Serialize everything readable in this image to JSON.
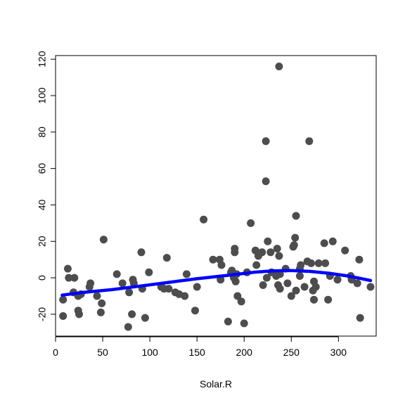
{
  "chart_data": {
    "type": "scatter",
    "title": "",
    "xlabel": "Solar.R",
    "ylabel": "",
    "xlim": [
      0,
      340
    ],
    "ylim": [
      -32,
      122
    ],
    "xticks": [
      0,
      50,
      100,
      150,
      200,
      250,
      300
    ],
    "yticks": [
      -20,
      0,
      20,
      40,
      60,
      80,
      100,
      120
    ],
    "grid": false,
    "point_color": "#4d4d4d",
    "smooth_color": "#0000ff",
    "points": [
      {
        "x": 8,
        "y": -12
      },
      {
        "x": 8,
        "y": -21
      },
      {
        "x": 13,
        "y": 5
      },
      {
        "x": 14,
        "y": 0
      },
      {
        "x": 19,
        "y": -8
      },
      {
        "x": 20,
        "y": 0
      },
      {
        "x": 24,
        "y": -10
      },
      {
        "x": 24,
        "y": -18
      },
      {
        "x": 25,
        "y": -20
      },
      {
        "x": 27,
        "y": -9
      },
      {
        "x": 36,
        "y": -5
      },
      {
        "x": 37,
        "y": -3
      },
      {
        "x": 44,
        "y": -10
      },
      {
        "x": 48,
        "y": -19
      },
      {
        "x": 49,
        "y": -14
      },
      {
        "x": 51,
        "y": 21
      },
      {
        "x": 65,
        "y": 2
      },
      {
        "x": 71,
        "y": -3
      },
      {
        "x": 77,
        "y": -27
      },
      {
        "x": 78,
        "y": -8
      },
      {
        "x": 81,
        "y": -20
      },
      {
        "x": 82,
        "y": -1
      },
      {
        "x": 83,
        "y": -3
      },
      {
        "x": 91,
        "y": 14
      },
      {
        "x": 92,
        "y": -6
      },
      {
        "x": 95,
        "y": -22
      },
      {
        "x": 99,
        "y": 3
      },
      {
        "x": 112,
        "y": -5
      },
      {
        "x": 115,
        "y": -6
      },
      {
        "x": 118,
        "y": 11
      },
      {
        "x": 120,
        "y": -6
      },
      {
        "x": 127,
        "y": -8
      },
      {
        "x": 131,
        "y": -9
      },
      {
        "x": 137,
        "y": -10
      },
      {
        "x": 139,
        "y": 2
      },
      {
        "x": 148,
        "y": -18
      },
      {
        "x": 150,
        "y": -5
      },
      {
        "x": 157,
        "y": 32
      },
      {
        "x": 167,
        "y": 10
      },
      {
        "x": 174,
        "y": 10
      },
      {
        "x": 175,
        "y": -1
      },
      {
        "x": 176,
        "y": 7
      },
      {
        "x": 183,
        "y": -24
      },
      {
        "x": 186,
        "y": 3
      },
      {
        "x": 187,
        "y": 4
      },
      {
        "x": 189,
        "y": 0
      },
      {
        "x": 190,
        "y": 14
      },
      {
        "x": 190,
        "y": 16
      },
      {
        "x": 191,
        "y": -2
      },
      {
        "x": 192,
        "y": 2
      },
      {
        "x": 193,
        "y": -10
      },
      {
        "x": 197,
        "y": -13
      },
      {
        "x": 200,
        "y": -25
      },
      {
        "x": 203,
        "y": 3
      },
      {
        "x": 207,
        "y": 30
      },
      {
        "x": 212,
        "y": 15
      },
      {
        "x": 213,
        "y": 7
      },
      {
        "x": 215,
        "y": 12
      },
      {
        "x": 219,
        "y": 14
      },
      {
        "x": 220,
        "y": -4
      },
      {
        "x": 223,
        "y": 75
      },
      {
        "x": 223,
        "y": 53
      },
      {
        "x": 224,
        "y": 0
      },
      {
        "x": 225,
        "y": 20
      },
      {
        "x": 228,
        "y": 14
      },
      {
        "x": 229,
        "y": 3
      },
      {
        "x": 234,
        "y": 1
      },
      {
        "x": 235,
        "y": 16
      },
      {
        "x": 236,
        "y": -4
      },
      {
        "x": 237,
        "y": 116
      },
      {
        "x": 237,
        "y": 12
      },
      {
        "x": 238,
        "y": -6
      },
      {
        "x": 238,
        "y": 2
      },
      {
        "x": 244,
        "y": 5
      },
      {
        "x": 246,
        "y": -3
      },
      {
        "x": 250,
        "y": -10
      },
      {
        "x": 252,
        "y": 17
      },
      {
        "x": 253,
        "y": 18
      },
      {
        "x": 254,
        "y": 22
      },
      {
        "x": 255,
        "y": 34
      },
      {
        "x": 255,
        "y": -7
      },
      {
        "x": 259,
        "y": 1
      },
      {
        "x": 259,
        "y": 5
      },
      {
        "x": 260,
        "y": 7
      },
      {
        "x": 264,
        "y": -5
      },
      {
        "x": 267,
        "y": 9
      },
      {
        "x": 269,
        "y": 75
      },
      {
        "x": 271,
        "y": 8
      },
      {
        "x": 273,
        "y": -7
      },
      {
        "x": 274,
        "y": -2
      },
      {
        "x": 274,
        "y": -12
      },
      {
        "x": 276,
        "y": -5
      },
      {
        "x": 279,
        "y": 8
      },
      {
        "x": 285,
        "y": 19
      },
      {
        "x": 286,
        "y": 8
      },
      {
        "x": 289,
        "y": -12
      },
      {
        "x": 291,
        "y": 1
      },
      {
        "x": 294,
        "y": 20
      },
      {
        "x": 299,
        "y": -1
      },
      {
        "x": 307,
        "y": 15
      },
      {
        "x": 313,
        "y": 1
      },
      {
        "x": 314,
        "y": -1
      },
      {
        "x": 320,
        "y": -3
      },
      {
        "x": 322,
        "y": 10
      },
      {
        "x": 323,
        "y": -22
      },
      {
        "x": 334,
        "y": -5
      }
    ],
    "smooth": [
      {
        "x": 7,
        "y": -9.5
      },
      {
        "x": 30,
        "y": -8
      },
      {
        "x": 60,
        "y": -6.5
      },
      {
        "x": 90,
        "y": -4.5
      },
      {
        "x": 120,
        "y": -2.5
      },
      {
        "x": 150,
        "y": -0.5
      },
      {
        "x": 180,
        "y": 1.2
      },
      {
        "x": 210,
        "y": 3
      },
      {
        "x": 230,
        "y": 3.8
      },
      {
        "x": 250,
        "y": 4
      },
      {
        "x": 270,
        "y": 3.5
      },
      {
        "x": 290,
        "y": 2.5
      },
      {
        "x": 310,
        "y": 1
      },
      {
        "x": 325,
        "y": -0.5
      },
      {
        "x": 334,
        "y": -1.5
      }
    ]
  }
}
